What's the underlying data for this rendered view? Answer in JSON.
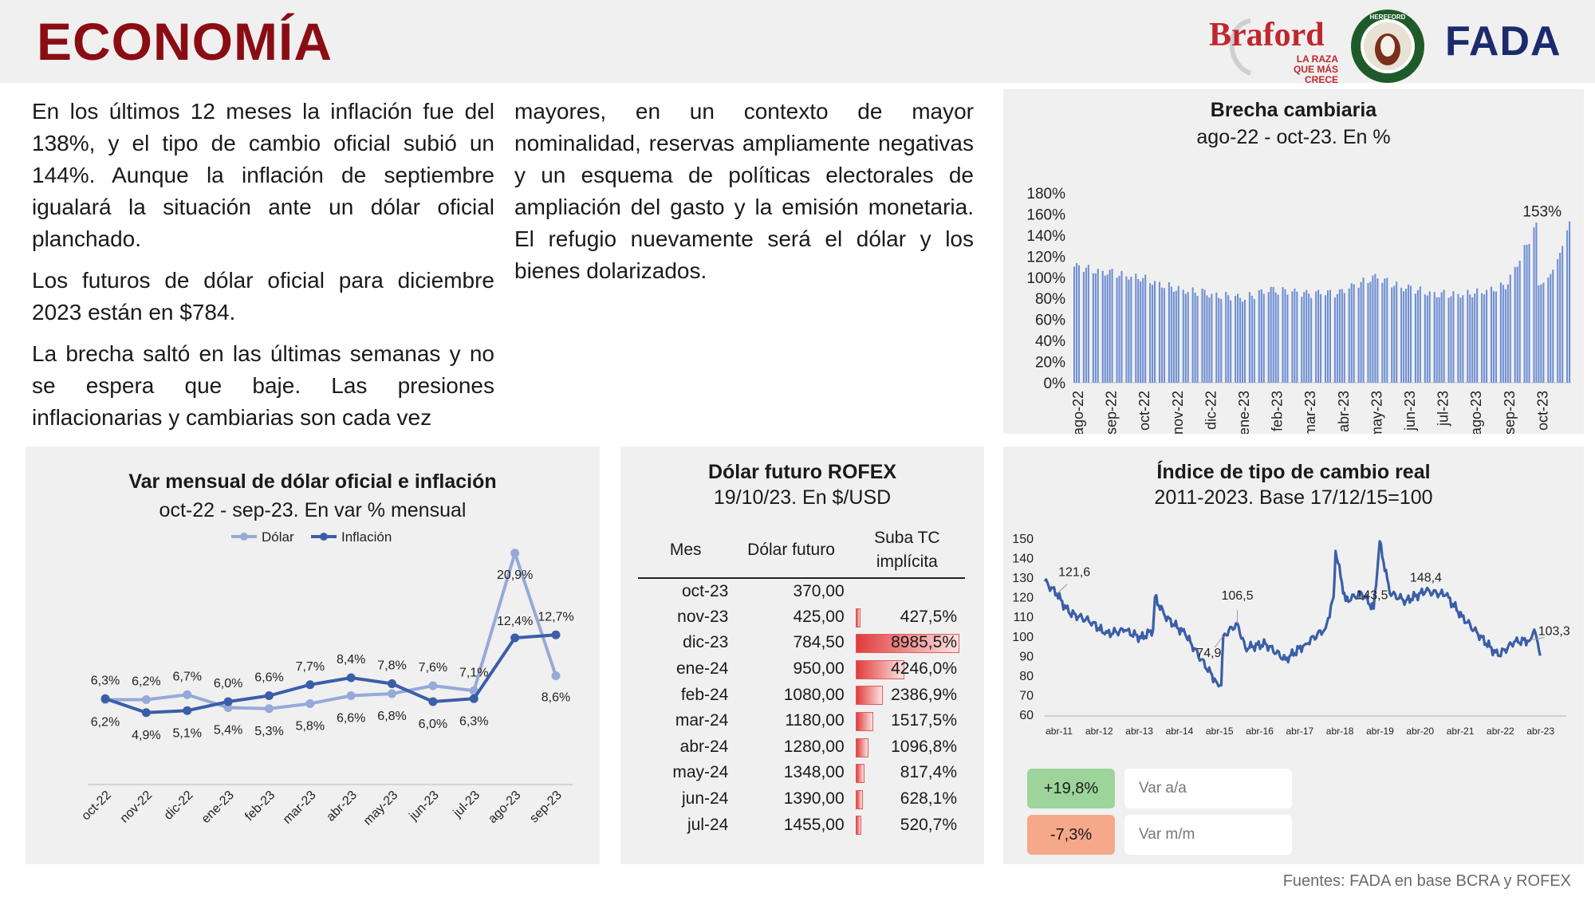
{
  "header": {
    "title": "ECONOMÍA",
    "braford_word": "Braford",
    "braford_tag": "LA RAZA QUE MÁS CRECE",
    "hereford_text": "HEREFORD",
    "fada_word": "FADA"
  },
  "text": {
    "col1": [
      "En los últimos 12 meses la inflación fue del 138%, y el tipo de cambio oficial subió un 144%. Aunque la inflación de septiembre igualará la situación ante un dólar oficial planchado.",
      "Los futuros de dólar oficial para diciembre 2023 están en $784.",
      "La brecha saltó en las últimas semanas y no se espera que baje. Las presiones inflacionarias y cambiarias son cada vez"
    ],
    "col2": [
      "mayores, en un contexto de mayor nominalidad, reservas ampliamente negativas y un esquema de políticas electorales de ampliación del gasto y la emisión monetaria. El refugio nuevamente será el dólar y los bienes dolarizados."
    ]
  },
  "brecha": {
    "title": "Brecha cambiaria",
    "subtitle": "ago-22 - oct-23. En %",
    "annotation": "153%",
    "chart_data": {
      "type": "bar",
      "x_labels": [
        "ago-22",
        "sep-22",
        "oct-22",
        "nov-22",
        "dic-22",
        "ene-23",
        "feb-23",
        "mar-23",
        "abr-23",
        "may-23",
        "jun-23",
        "jul-23",
        "ago-23",
        "sep-23",
        "oct-23"
      ],
      "y_ticks": [
        "180%",
        "160%",
        "140%",
        "120%",
        "100%",
        "80%",
        "60%",
        "40%",
        "20%",
        "0%"
      ],
      "ylim": [
        0,
        180
      ],
      "monthly_levels": [
        110,
        105,
        100,
        90,
        85,
        80,
        88,
        84,
        85,
        100,
        90,
        84,
        85,
        92,
        153
      ]
    }
  },
  "var": {
    "title": "Var mensual de dólar oficial e inflación",
    "subtitle": "oct-22 - sep-23. En var % mensual",
    "chart_data": {
      "type": "line",
      "categories": [
        "oct-22",
        "nov-22",
        "dic-22",
        "ene-23",
        "feb-23",
        "mar-23",
        "abr-23",
        "may-23",
        "jun-23",
        "jul-23",
        "ago-23",
        "sep-23"
      ],
      "ylim": [
        0,
        22
      ],
      "series": [
        {
          "name": "Dólar",
          "color": "#96a9d9",
          "values": [
            6.2,
            6.2,
            6.7,
            5.4,
            5.3,
            5.8,
            6.6,
            6.8,
            7.6,
            7.1,
            20.9,
            8.6
          ],
          "labels": [
            "6,2%",
            "6,2%",
            "6,7%",
            "5,4%",
            "5,3%",
            "5,8%",
            "6,6%",
            "6,8%",
            "7,6%",
            "7,1%",
            "20,9%",
            "8,6%"
          ]
        },
        {
          "name": "Inflación",
          "color": "#3a5ea8",
          "values": [
            6.3,
            4.9,
            5.1,
            6.0,
            6.6,
            7.7,
            8.4,
            7.8,
            6.0,
            6.3,
            12.4,
            12.7
          ],
          "labels": [
            "6,3%",
            "4,9%",
            "5,1%",
            "6,0%",
            "6,6%",
            "7,7%",
            "8,4%",
            "7,8%",
            "6,0%",
            "6,3%",
            "12,4%",
            "12,7%"
          ]
        }
      ]
    }
  },
  "rofex": {
    "title": "Dólar futuro ROFEX",
    "subtitle": "19/10/23. En $/USD",
    "headers": [
      "Mes",
      "Dólar futuro",
      "Suba TC implícita"
    ],
    "chart_data": {
      "type": "table",
      "rows": [
        {
          "mes": "oct-23",
          "dolar": "370,00",
          "suba": "",
          "value": 0
        },
        {
          "mes": "nov-23",
          "dolar": "425,00",
          "suba": "427,5%",
          "value": 427.5
        },
        {
          "mes": "dic-23",
          "dolar": "784,50",
          "suba": "8985,5%",
          "value": 8985.5
        },
        {
          "mes": "ene-24",
          "dolar": "950,00",
          "suba": "4246,0%",
          "value": 4246.0
        },
        {
          "mes": "feb-24",
          "dolar": "1080,00",
          "suba": "2386,9%",
          "value": 2386.9
        },
        {
          "mes": "mar-24",
          "dolar": "1180,00",
          "suba": "1517,5%",
          "value": 1517.5
        },
        {
          "mes": "abr-24",
          "dolar": "1280,00",
          "suba": "1096,8%",
          "value": 1096.8
        },
        {
          "mes": "may-24",
          "dolar": "1348,00",
          "suba": "817,4%",
          "value": 817.4
        },
        {
          "mes": "jun-24",
          "dolar": "1390,00",
          "suba": "628,1%",
          "value": 628.1
        },
        {
          "mes": "jul-24",
          "dolar": "1455,00",
          "suba": "520,7%",
          "value": 520.7
        }
      ]
    }
  },
  "itcr": {
    "title": "Índice de tipo de cambio real",
    "subtitle": "2011-2023. Base 17/12/15=100",
    "chart_data": {
      "type": "line",
      "x_labels": [
        "abr-11",
        "abr-12",
        "abr-13",
        "abr-14",
        "abr-15",
        "abr-16",
        "abr-17",
        "abr-18",
        "abr-19",
        "abr-20",
        "abr-21",
        "abr-22",
        "abr-23"
      ],
      "y_ticks": [
        "150",
        "140",
        "130",
        "120",
        "110",
        "100",
        "90",
        "80",
        "70",
        "60"
      ],
      "ylim": [
        60,
        150
      ],
      "points": [
        [
          0,
          128
        ],
        [
          0.3,
          121.6
        ],
        [
          0.6,
          112
        ],
        [
          1.2,
          107
        ],
        [
          1.5,
          101
        ],
        [
          2.0,
          103
        ],
        [
          2.4,
          99
        ],
        [
          2.7,
          103
        ],
        [
          2.75,
          120
        ],
        [
          3.0,
          110
        ],
        [
          3.5,
          101
        ],
        [
          3.9,
          88
        ],
        [
          4.3,
          76
        ],
        [
          4.4,
          74.9
        ],
        [
          4.45,
          100
        ],
        [
          4.8,
          106.5
        ],
        [
          5.0,
          94
        ],
        [
          5.5,
          96
        ],
        [
          6.0,
          88
        ],
        [
          6.5,
          96
        ],
        [
          7.0,
          104
        ],
        [
          7.2,
          120
        ],
        [
          7.25,
          143.5
        ],
        [
          7.5,
          118
        ],
        [
          7.9,
          122
        ],
        [
          8.2,
          114
        ],
        [
          8.35,
          148.4
        ],
        [
          8.6,
          122
        ],
        [
          9.0,
          118
        ],
        [
          9.5,
          123
        ],
        [
          10.0,
          121
        ],
        [
          10.4,
          110
        ],
        [
          10.8,
          101
        ],
        [
          11.3,
          90
        ],
        [
          11.7,
          97
        ],
        [
          12.1,
          98
        ],
        [
          12.2,
          103.3
        ],
        [
          12.35,
          90
        ]
      ],
      "annotations": [
        {
          "label": "121,6"
        },
        {
          "label": "74,9"
        },
        {
          "label": "106,5"
        },
        {
          "label": "143,5"
        },
        {
          "label": "148,4"
        },
        {
          "label": "103,3"
        }
      ]
    },
    "kpis": [
      {
        "value": "+19,8%",
        "label": "Var a/a",
        "color": "#9dd49a"
      },
      {
        "value": "-7,3%",
        "label": "Var m/m",
        "color": "#f5a88a"
      }
    ]
  },
  "footer": {
    "fuentes": "Fuentes: FADA en base BCRA y ROFEX"
  }
}
